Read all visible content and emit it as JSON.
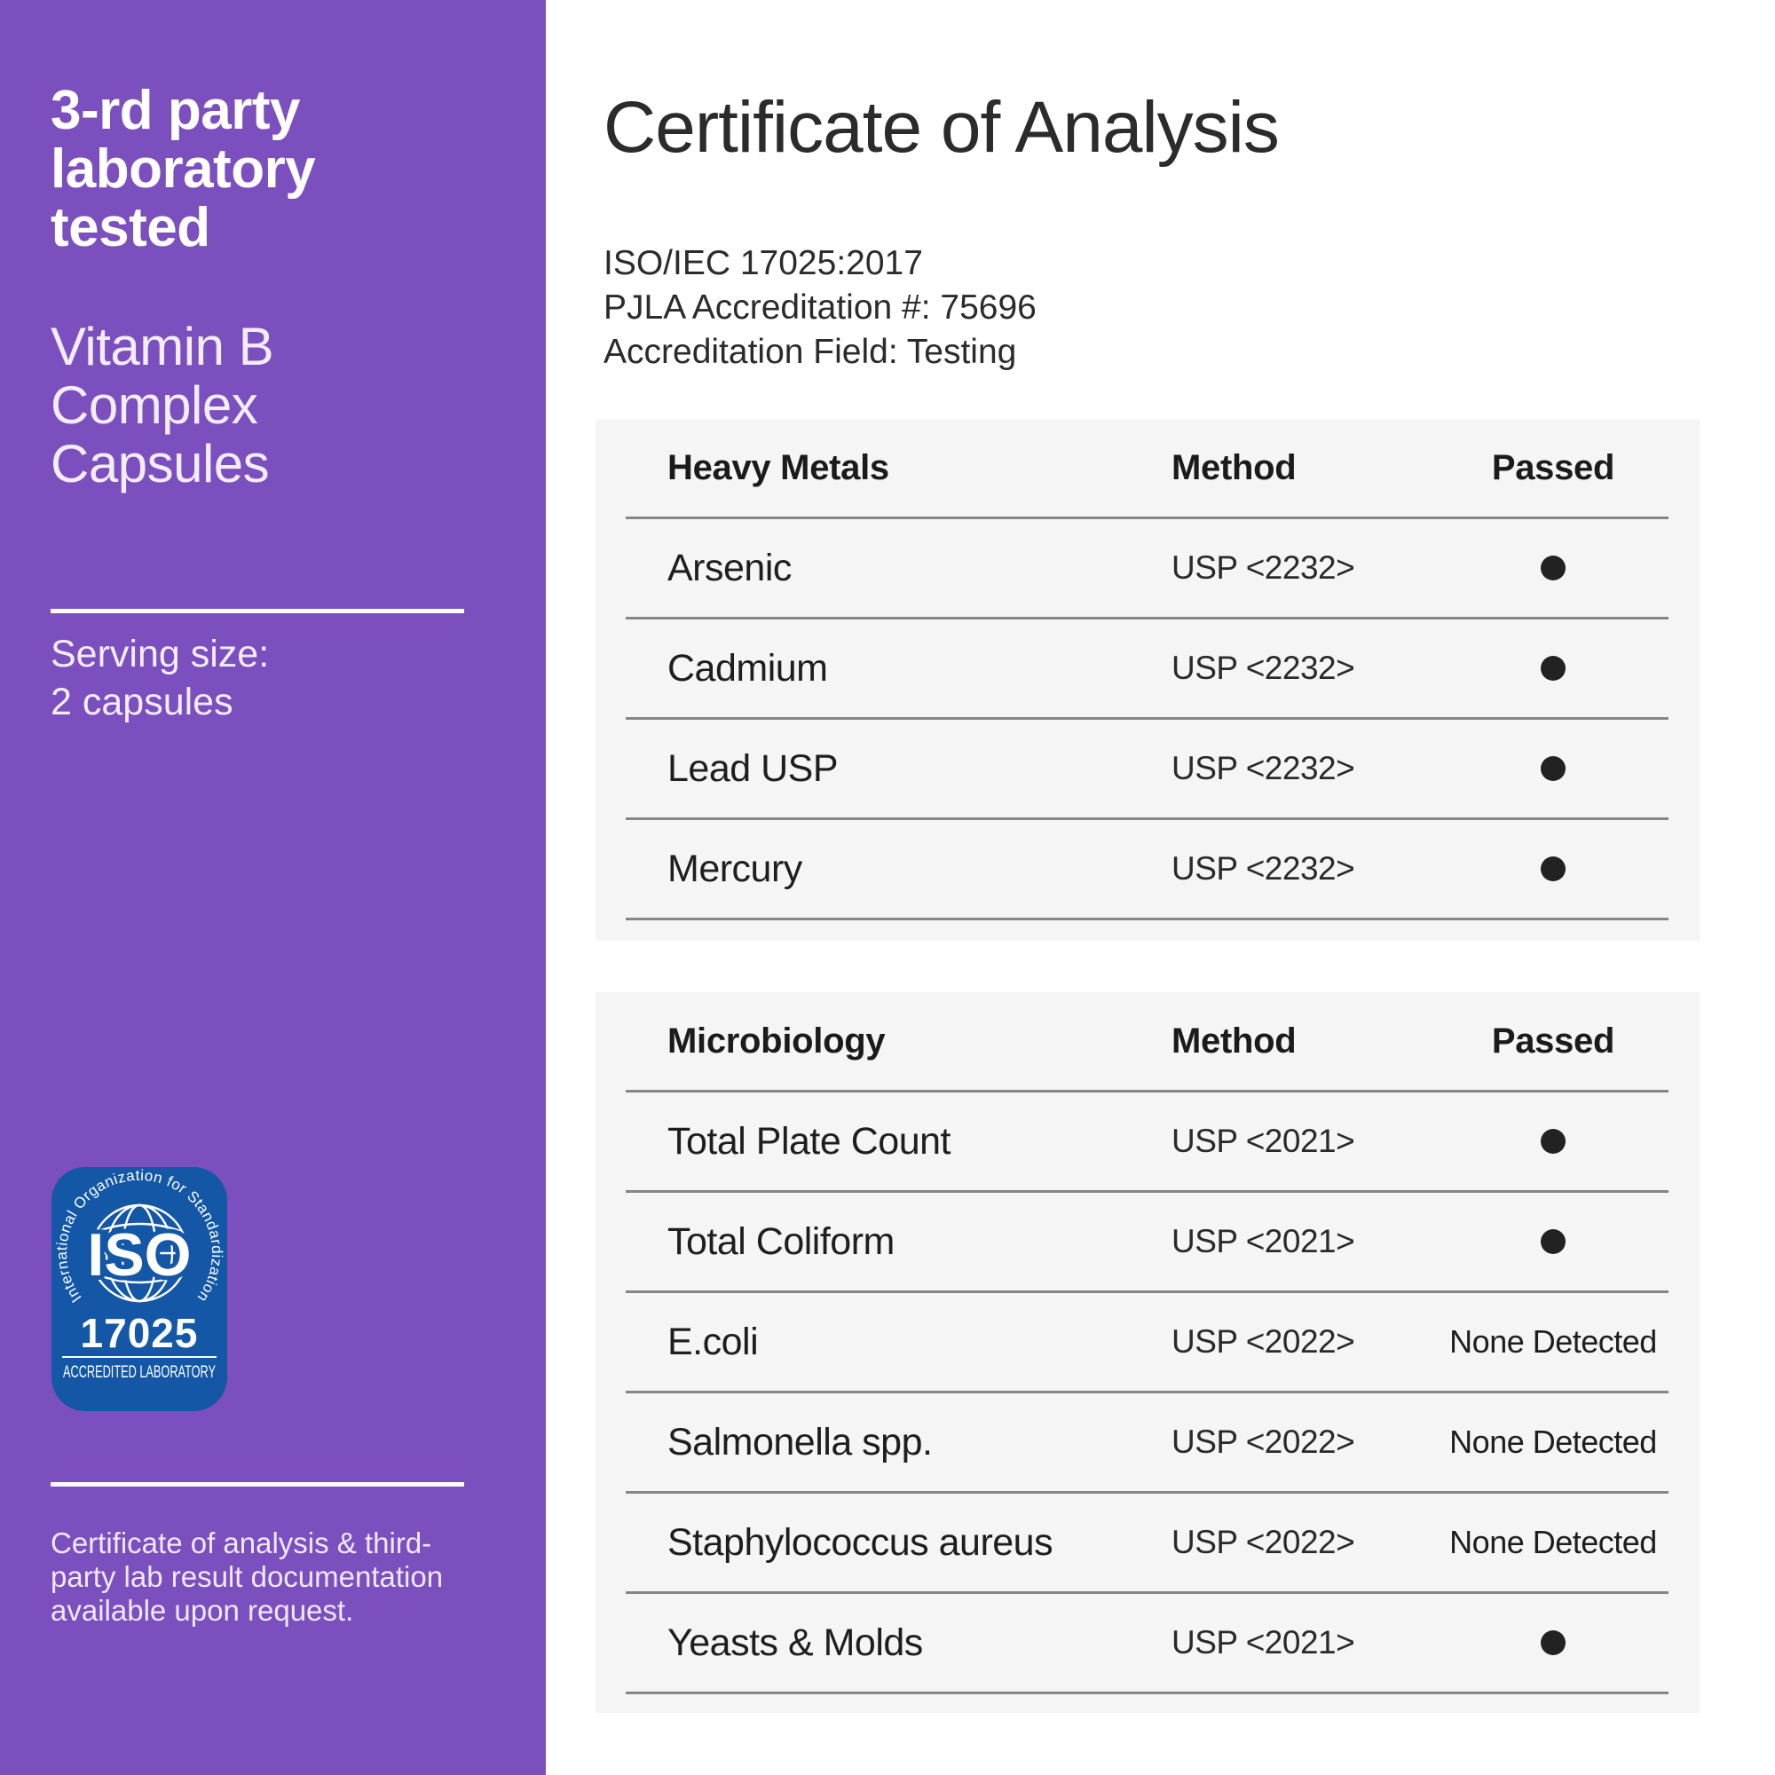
{
  "sidebar": {
    "heading": "3-rd party laboratory tested",
    "product": "Vitamin B Complex Capsules",
    "serving_label": "Serving size:",
    "serving_value": "2 capsules",
    "note": "Certificate of analysis & third-party lab result documentation available upon request.",
    "badge": {
      "arc_text": "International Organization for Standardization",
      "iso": "ISO",
      "number": "17025",
      "caption": "ACCREDITED LABORATORY"
    },
    "bg_color": "#7b4fbe",
    "badge_color": "#1357a6"
  },
  "main": {
    "title": "Certificate of Analysis",
    "accreditation_lines": [
      "ISO/IEC 17025:2017",
      "PJLA Accreditation #: 75696",
      "Accreditation Field: Testing"
    ]
  },
  "tables": [
    {
      "category_header": "Heavy Metals",
      "method_header": "Method",
      "passed_header": "Passed",
      "rows": [
        {
          "name": "Arsenic",
          "method": "USP <2232>",
          "passed": "dot"
        },
        {
          "name": "Cadmium",
          "method": "USP <2232>",
          "passed": "dot"
        },
        {
          "name": "Lead USP",
          "method": "USP <2232>",
          "passed": "dot"
        },
        {
          "name": "Mercury",
          "method": "USP <2232>",
          "passed": "dot"
        }
      ]
    },
    {
      "category_header": "Microbiology",
      "method_header": "Method",
      "passed_header": "Passed",
      "rows": [
        {
          "name": "Total Plate Count",
          "method": "USP <2021>",
          "passed": "dot"
        },
        {
          "name": "Total Coliform",
          "method": "USP <2021>",
          "passed": "dot"
        },
        {
          "name": "E.coli",
          "method": "USP <2022>",
          "passed": "None Detected"
        },
        {
          "name": "Salmonella spp.",
          "method": "USP <2022>",
          "passed": "None Detected"
        },
        {
          "name": "Staphylococcus aureus",
          "method": "USP <2022>",
          "passed": "None Detected"
        },
        {
          "name": "Yeasts & Molds",
          "method": "USP <2021>",
          "passed": "dot"
        }
      ]
    }
  ],
  "colors": {
    "sidebar_purple": "#7b4fbe",
    "badge_blue": "#1357a6",
    "card_gray": "#f5f5f6",
    "separator_gray": "#868686",
    "text_dark": "#222222"
  }
}
